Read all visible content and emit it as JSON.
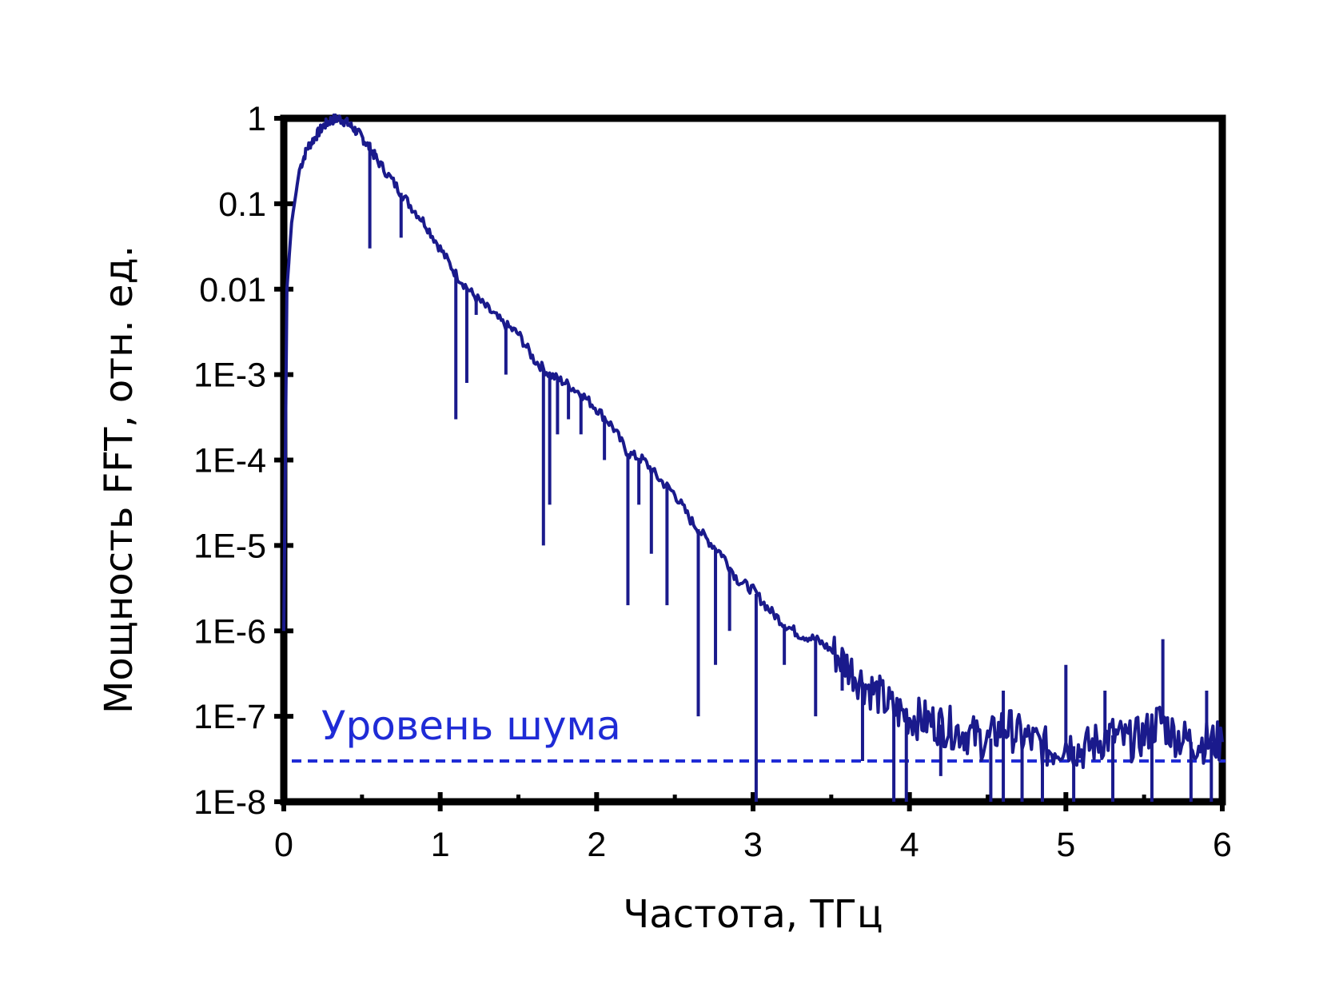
{
  "chart_data": {
    "type": "line",
    "xlabel": "Частота, ТГц",
    "ylabel": "Мощность FFT, отн. ед.",
    "xlim": [
      0,
      6
    ],
    "ylim": [
      1e-08,
      1
    ],
    "yscale": "log",
    "grid": false,
    "x_ticks": [
      "0",
      "1",
      "2",
      "3",
      "4",
      "5",
      "6"
    ],
    "y_ticks": [
      "1",
      "0.1",
      "0.01",
      "1E-3",
      "1E-4",
      "1E-5",
      "1E-6",
      "1E-7",
      "1E-8"
    ],
    "colors": {
      "series": "#1a1a8c",
      "noise": "#1f2bd6"
    },
    "annotation": {
      "text": "Уровень шума",
      "value": 3e-08
    },
    "series": [
      {
        "x": [
          0,
          0.02,
          0.05,
          0.1,
          0.15,
          0.2,
          0.25,
          0.3,
          0.35,
          0.4,
          0.45,
          0.5,
          0.55,
          0.6,
          0.7,
          0.8,
          0.9,
          1.0,
          1.1,
          1.2,
          1.3,
          1.4,
          1.5,
          1.6,
          1.7,
          1.8,
          1.9,
          2.0,
          2.1,
          2.2,
          2.3,
          2.4,
          2.5,
          2.6,
          2.7,
          2.8,
          2.9,
          3.0,
          3.1,
          3.2,
          3.3,
          3.4,
          3.5,
          3.6,
          3.7,
          3.8,
          3.9,
          4.0,
          4.1,
          4.2,
          4.3,
          4.4,
          4.5,
          4.6,
          4.7,
          4.8,
          4.9,
          5.0,
          5.1,
          5.2,
          5.3,
          5.4,
          5.5,
          5.6,
          5.7,
          5.8,
          5.9,
          6.0
        ],
        "y": [
          1e-06,
          0.01,
          0.06,
          0.25,
          0.45,
          0.6,
          0.8,
          0.95,
          1.0,
          0.9,
          0.75,
          0.6,
          0.45,
          0.32,
          0.18,
          0.1,
          0.06,
          0.03,
          0.015,
          0.009,
          0.006,
          0.004,
          0.003,
          0.0015,
          0.001,
          0.0008,
          0.0006,
          0.0004,
          0.00025,
          0.00012,
          0.0001,
          6e-05,
          4e-05,
          2e-05,
          1.2e-05,
          8e-06,
          4e-06,
          3e-06,
          1.8e-06,
          1.2e-06,
          9e-07,
          8e-07,
          6e-07,
          4e-07,
          2.5e-07,
          1.8e-07,
          1.2e-07,
          1e-07,
          9e-08,
          8e-08,
          7e-08,
          6e-08,
          5e-08,
          8e-08,
          6e-08,
          5e-08,
          4e-08,
          5e-08,
          4e-08,
          5e-08,
          6e-08,
          5e-08,
          6e-08,
          9e-08,
          6e-08,
          5e-08,
          5e-08,
          5e-08
        ],
        "dips": [
          {
            "x": 0.55,
            "y": 0.03
          },
          {
            "x": 0.75,
            "y": 0.04
          },
          {
            "x": 1.1,
            "y": 0.0003
          },
          {
            "x": 1.17,
            "y": 0.0008
          },
          {
            "x": 1.23,
            "y": 0.005
          },
          {
            "x": 1.42,
            "y": 0.001
          },
          {
            "x": 1.66,
            "y": 1e-05
          },
          {
            "x": 1.7,
            "y": 3e-05
          },
          {
            "x": 1.75,
            "y": 0.0002
          },
          {
            "x": 1.82,
            "y": 0.0003
          },
          {
            "x": 1.9,
            "y": 0.0002
          },
          {
            "x": 2.05,
            "y": 0.0001
          },
          {
            "x": 2.2,
            "y": 2e-06
          },
          {
            "x": 2.27,
            "y": 3e-05
          },
          {
            "x": 2.35,
            "y": 8e-06
          },
          {
            "x": 2.45,
            "y": 2e-06
          },
          {
            "x": 2.65,
            "y": 1e-07
          },
          {
            "x": 2.76,
            "y": 4e-07
          },
          {
            "x": 2.85,
            "y": 1e-06
          },
          {
            "x": 3.02,
            "y": 1e-08
          },
          {
            "x": 3.2,
            "y": 4e-07
          },
          {
            "x": 3.4,
            "y": 1e-07
          },
          {
            "x": 3.57,
            "y": 2e-07
          },
          {
            "x": 3.7,
            "y": 3e-08
          },
          {
            "x": 3.9,
            "y": 1e-08
          },
          {
            "x": 3.98,
            "y": 1e-08
          },
          {
            "x": 4.2,
            "y": 2e-08
          },
          {
            "x": 4.52,
            "y": 1e-08
          },
          {
            "x": 4.6,
            "y": 1e-08
          },
          {
            "x": 4.72,
            "y": 1e-08
          },
          {
            "x": 4.85,
            "y": 1e-08
          },
          {
            "x": 5.05,
            "y": 1e-08
          },
          {
            "x": 5.3,
            "y": 1e-08
          },
          {
            "x": 5.55,
            "y": 1e-08
          },
          {
            "x": 5.8,
            "y": 1e-08
          },
          {
            "x": 5.93,
            "y": 1e-08
          }
        ],
        "spikes": [
          {
            "x": 5.62,
            "y": 8e-07
          },
          {
            "x": 5.0,
            "y": 4e-07
          },
          {
            "x": 4.6,
            "y": 2e-07
          },
          {
            "x": 5.25,
            "y": 2e-07
          },
          {
            "x": 5.9,
            "y": 2e-07
          }
        ]
      }
    ]
  }
}
